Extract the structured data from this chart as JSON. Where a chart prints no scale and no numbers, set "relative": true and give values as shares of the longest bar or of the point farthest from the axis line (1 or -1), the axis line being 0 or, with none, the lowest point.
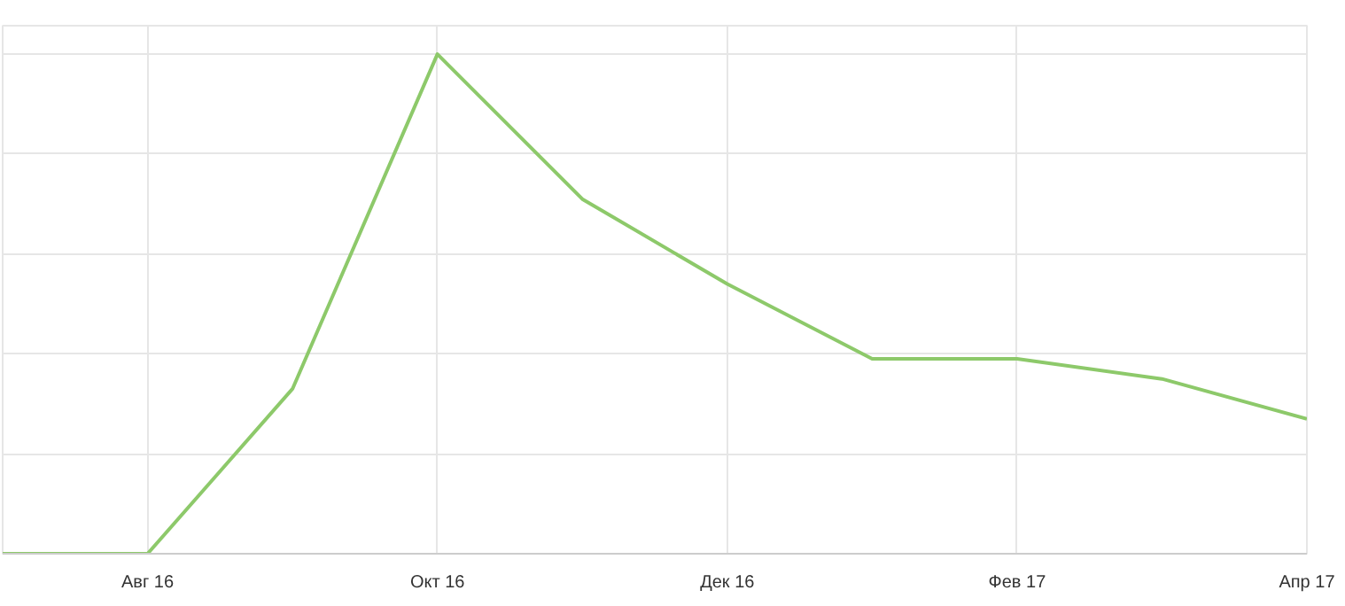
{
  "chart_data": {
    "type": "line",
    "relative": true,
    "categories": [
      null,
      "Авг 16",
      null,
      "Окт 16",
      null,
      "Дек 16",
      null,
      "Фев 17",
      null,
      "Апр 17"
    ],
    "series": [
      {
        "color": "#8dc96a",
        "values": [
          0,
          0,
          0.33,
          1,
          0.71,
          0.54,
          0.39,
          0.39,
          0.35,
          0.27
        ]
      }
    ],
    "grid": true,
    "marker": "none",
    "line_style": "solid"
  }
}
